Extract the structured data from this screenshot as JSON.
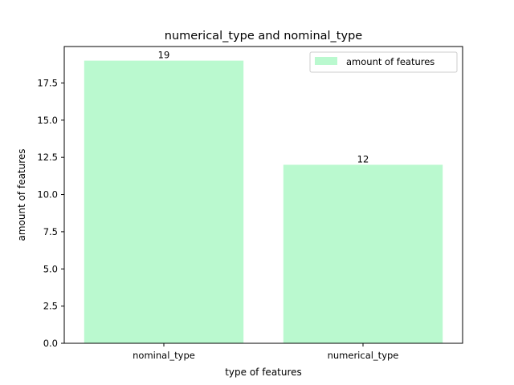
{
  "chart_data": {
    "type": "bar",
    "title": "numerical_type and nominal_type",
    "xlabel": "type of features",
    "ylabel": "amount of features",
    "categories": [
      "nominal_type",
      "numerical_type"
    ],
    "series": [
      {
        "name": "amount of features",
        "values": [
          19,
          12
        ]
      }
    ],
    "data_labels": [
      "19",
      "12"
    ],
    "ylim": [
      0,
      19.95
    ],
    "yticks": [
      0.0,
      2.5,
      5.0,
      7.5,
      10.0,
      12.5,
      15.0,
      17.5
    ],
    "ytick_labels": [
      "0.0",
      "2.5",
      "5.0",
      "7.5",
      "10.0",
      "12.5",
      "15.0",
      "17.5"
    ],
    "grid": false,
    "legend_position": "top-right",
    "colors": {
      "bar": "#baf9cf",
      "axis": "#000000",
      "background": "#ffffff"
    }
  }
}
